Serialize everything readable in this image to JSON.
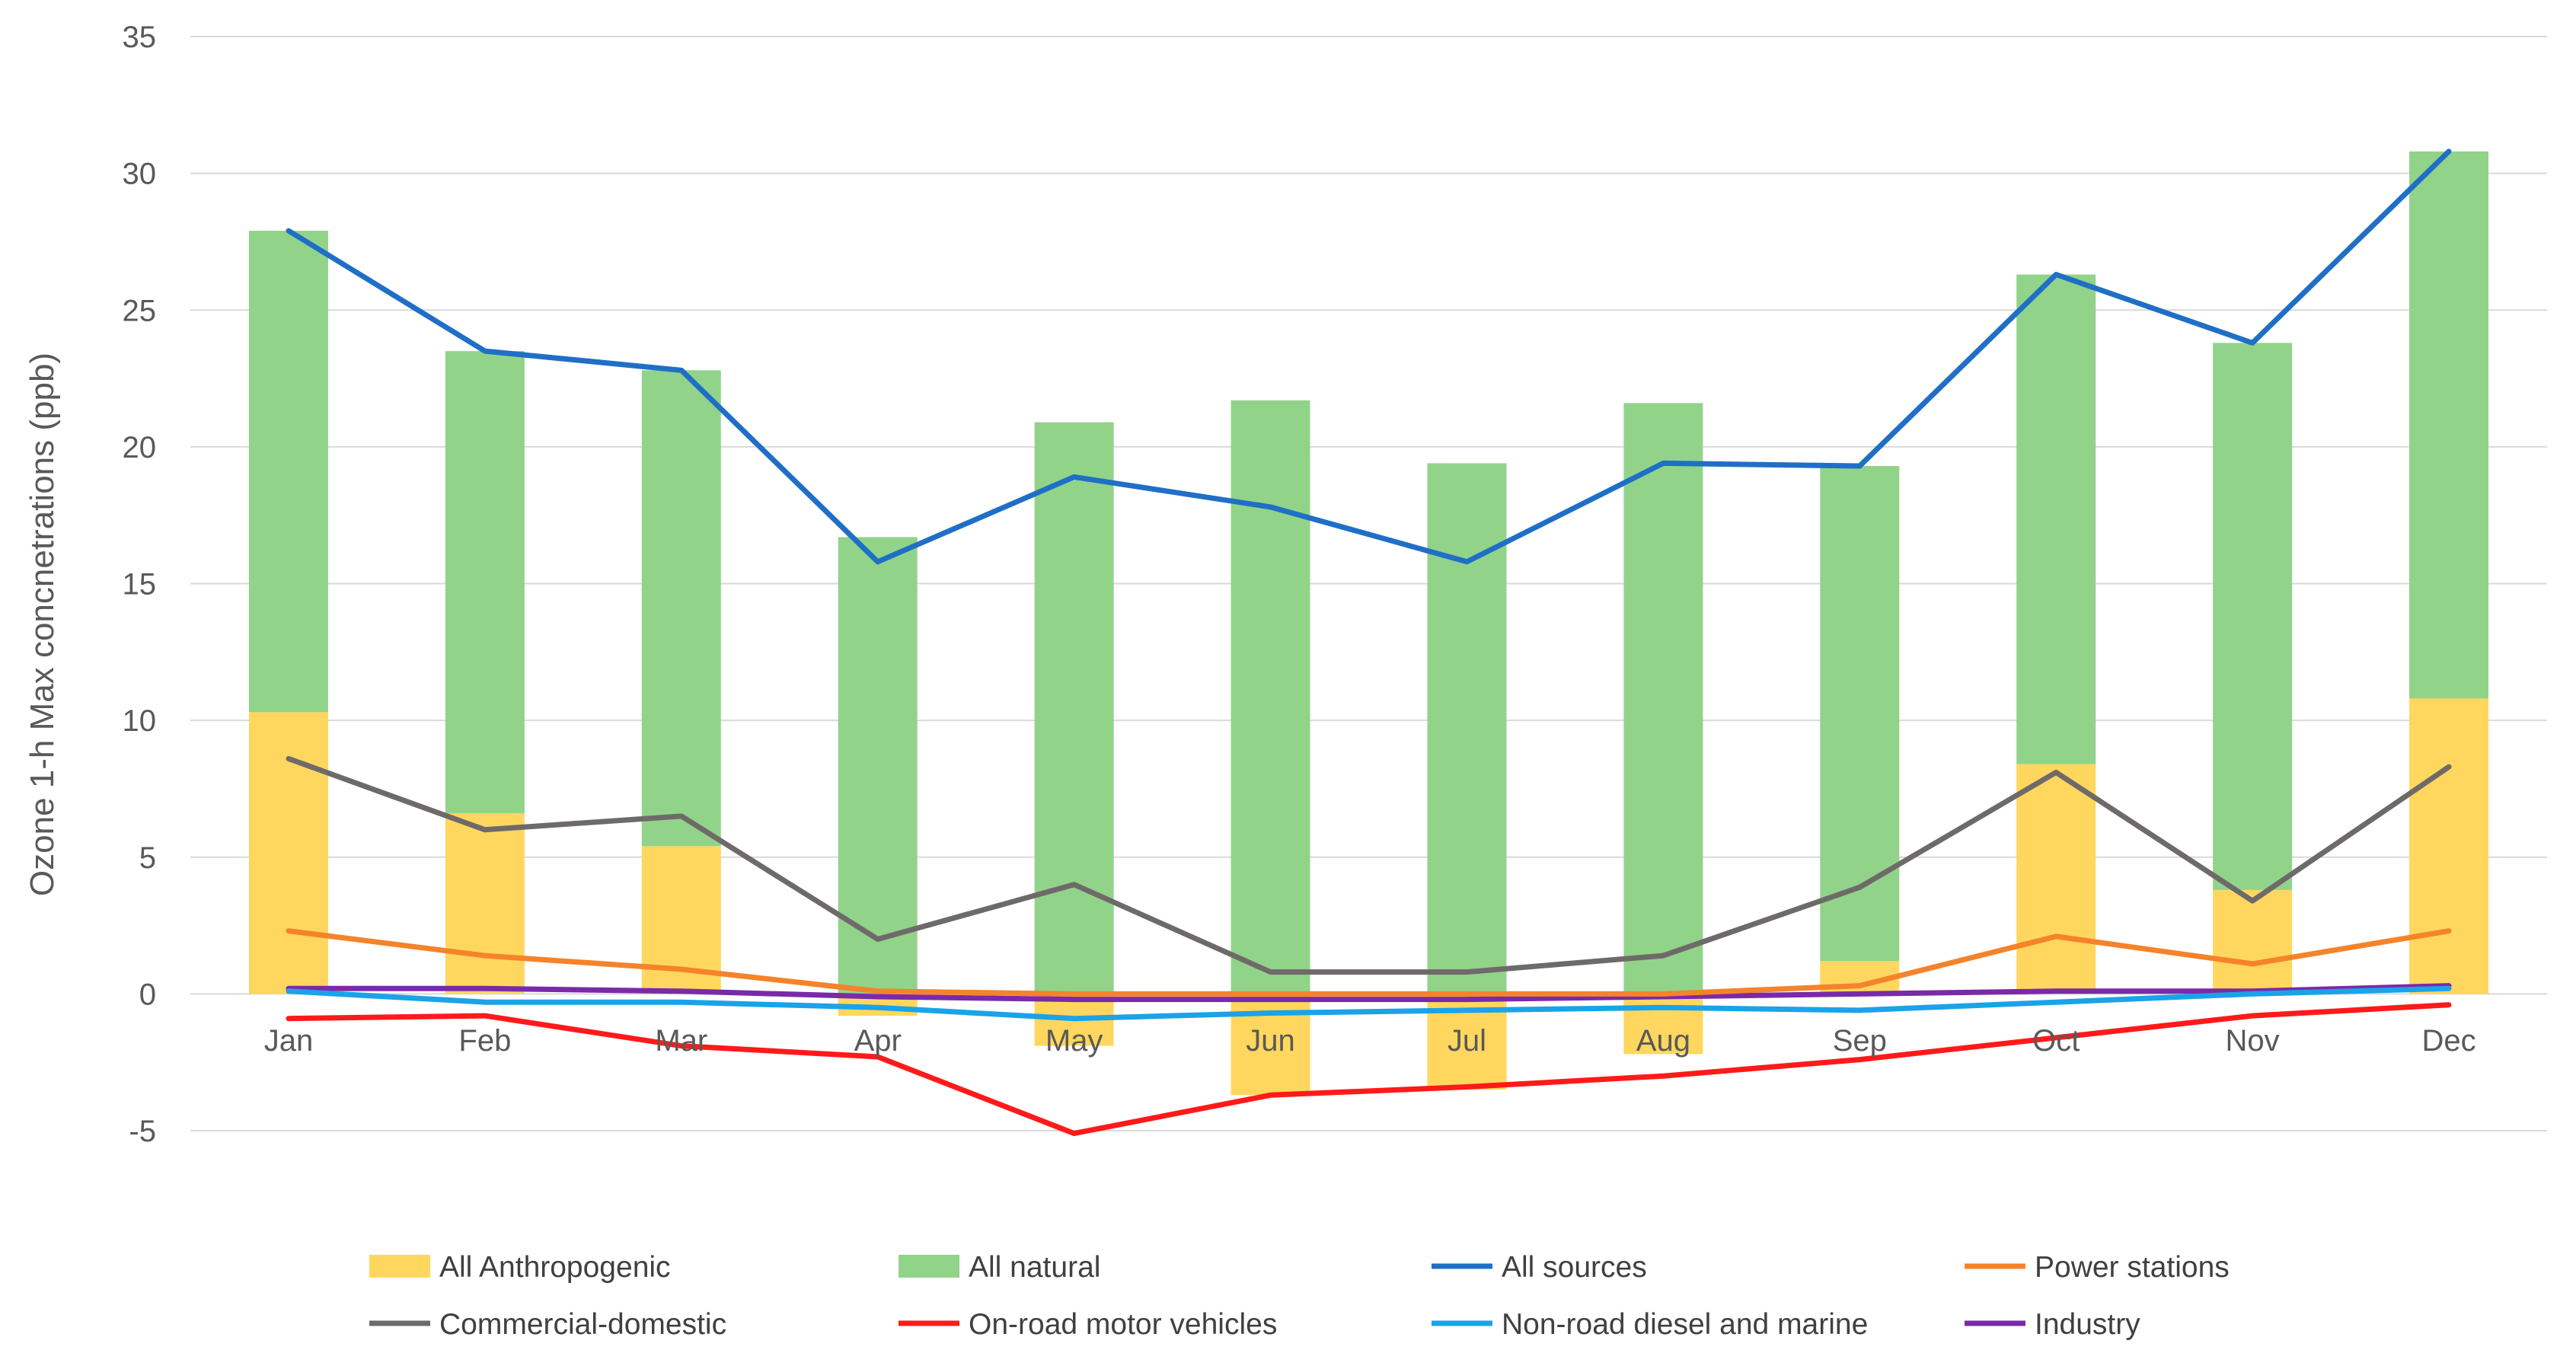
{
  "chart_data": {
    "type": "bar+line",
    "title": "",
    "xlabel": "",
    "ylabel": "Ozone 1-h Max concnetrations (ppb)",
    "ylim": [
      -5,
      35
    ],
    "yticks": [
      35,
      30,
      25,
      20,
      15,
      10,
      5,
      0,
      -5
    ],
    "grid": true,
    "legend_position": "bottom",
    "categories": [
      "Jan",
      "Feb",
      "Mar",
      "Apr",
      "May",
      "Jun",
      "Jul",
      "Aug",
      "Sep",
      "Oct",
      "Nov",
      "Dec"
    ],
    "bar_series": [
      {
        "name": "All Anthropogenic",
        "color": "#ffd75e",
        "values": [
          10.3,
          6.6,
          5.4,
          -0.8,
          -1.9,
          -3.7,
          -3.5,
          -2.2,
          1.2,
          8.4,
          3.8,
          10.8
        ]
      },
      {
        "name": "All natural",
        "color": "#92d38a",
        "values": [
          17.6,
          16.9,
          17.4,
          16.7,
          20.9,
          21.7,
          19.4,
          21.6,
          18.1,
          17.9,
          20.0,
          20.0
        ]
      }
    ],
    "line_series": [
      {
        "name": "All sources",
        "color": "#1f6fc6",
        "values": [
          27.9,
          23.5,
          22.8,
          15.8,
          18.9,
          17.8,
          15.8,
          19.4,
          19.3,
          26.3,
          23.8,
          30.8
        ]
      },
      {
        "name": "Power stations",
        "color": "#f5832a",
        "values": [
          2.3,
          1.4,
          0.9,
          0.1,
          0.0,
          0.0,
          0.0,
          0.0,
          0.3,
          2.1,
          1.1,
          2.3
        ]
      },
      {
        "name": "Commercial-domestic",
        "color": "#6f6a6a",
        "values": [
          8.6,
          6.0,
          6.5,
          2.0,
          4.0,
          0.8,
          0.8,
          1.4,
          3.9,
          8.1,
          3.4,
          8.3
        ]
      },
      {
        "name": "On-road motor vehicles",
        "color": "#ff1a1a",
        "values": [
          -0.9,
          -0.8,
          -1.9,
          -2.3,
          -5.1,
          -3.7,
          -3.4,
          -3.0,
          -2.4,
          -1.6,
          -0.8,
          -0.4
        ]
      },
      {
        "name": "Non-road diesel and marine",
        "color": "#1aa3e8",
        "values": [
          0.1,
          -0.3,
          -0.3,
          -0.5,
          -0.9,
          -0.7,
          -0.6,
          -0.5,
          -0.6,
          -0.3,
          0.0,
          0.2
        ]
      },
      {
        "name": "Industry",
        "color": "#7a2aa8",
        "values": [
          0.2,
          0.2,
          0.1,
          -0.1,
          -0.2,
          -0.2,
          -0.2,
          -0.1,
          0.0,
          0.1,
          0.1,
          0.3
        ]
      }
    ],
    "legend": [
      {
        "label": "All Anthropogenic",
        "kind": "bar",
        "color": "#ffd75e"
      },
      {
        "label": "All natural",
        "kind": "bar",
        "color": "#92d38a"
      },
      {
        "label": "All sources",
        "kind": "line",
        "color": "#1f6fc6"
      },
      {
        "label": "Power stations",
        "kind": "line",
        "color": "#f5832a"
      },
      {
        "label": "Commercial-domestic",
        "kind": "line",
        "color": "#6f6a6a"
      },
      {
        "label": "On-road motor vehicles",
        "kind": "line",
        "color": "#ff1a1a"
      },
      {
        "label": "Non-road diesel and marine",
        "kind": "line",
        "color": "#1aa3e8"
      },
      {
        "label": "Industry",
        "kind": "line",
        "color": "#7a2aa8"
      }
    ]
  }
}
